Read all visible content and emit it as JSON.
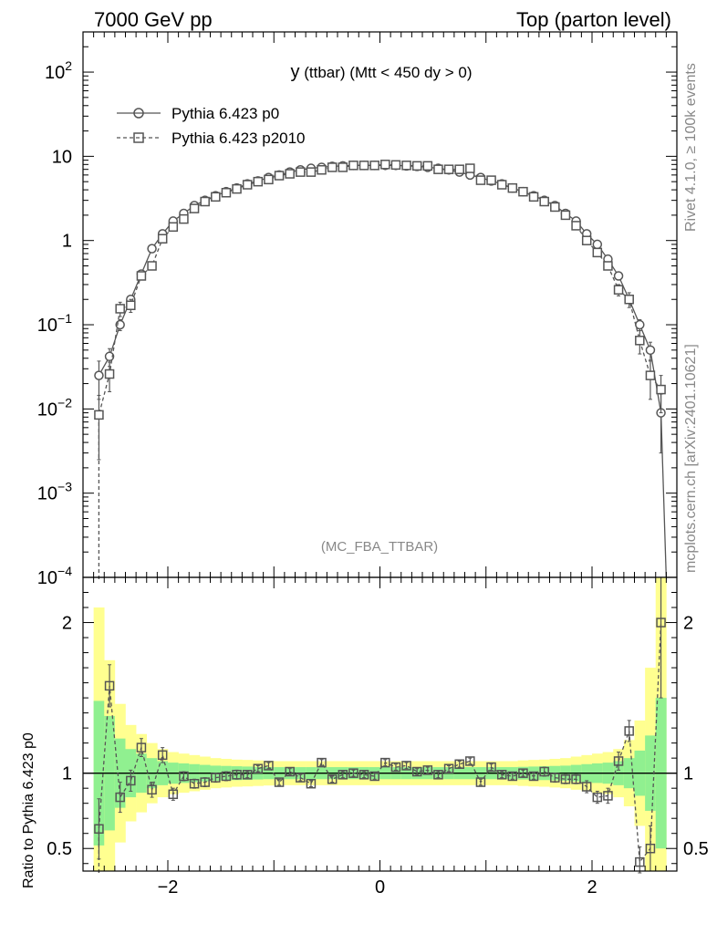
{
  "header": {
    "left": "7000 GeV pp",
    "right": "Top (parton level)"
  },
  "side_labels": {
    "rivet": "Rivet 4.1.0, ≥ 100k events",
    "mcplots": "mcplots.cern.ch [arXiv:2401.10621]"
  },
  "colors": {
    "series1": "#555555",
    "series2": "#555555",
    "band_inner": "#90f090",
    "band_outer": "#ffff90"
  },
  "chart_data": [
    {
      "type": "line",
      "panel": "main",
      "title": "y (ttbar) (Mtt < 450 dy > 0)",
      "title_main": "y",
      "title_rest": " (ttbar) (Mtt < 450 dy > 0)",
      "watermark": "(MC_FBA_TTBAR)",
      "xlabel": "",
      "ylabel": "",
      "yscale": "log",
      "xlim": [
        -2.8,
        2.8
      ],
      "ylim": [
        0.0001,
        300
      ],
      "ytick_labels": [
        {
          "value": 100,
          "base": "10",
          "exp": "2"
        },
        {
          "value": 10,
          "base": "10",
          "exp": ""
        },
        {
          "value": 1,
          "base": "1",
          "exp": ""
        },
        {
          "value": 0.1,
          "base": "10",
          "exp": "−1"
        },
        {
          "value": 0.01,
          "base": "10",
          "exp": "−2"
        },
        {
          "value": 0.001,
          "base": "10",
          "exp": "−3"
        },
        {
          "value": 0.0001,
          "base": "10",
          "exp": "−4"
        }
      ],
      "legend_position": "top-left",
      "series": [
        {
          "name": "Pythia 6.423 p0",
          "style": "solid-circle",
          "x": [
            -2.65,
            -2.55,
            -2.45,
            -2.35,
            -2.25,
            -2.15,
            -2.05,
            -1.95,
            -1.85,
            -1.75,
            -1.65,
            -1.55,
            -1.45,
            -1.35,
            -1.25,
            -1.15,
            -1.05,
            -0.95,
            -0.85,
            -0.75,
            -0.65,
            -0.55,
            -0.45,
            -0.35,
            -0.25,
            -0.15,
            -0.05,
            0.05,
            0.15,
            0.25,
            0.35,
            0.45,
            0.55,
            0.65,
            0.75,
            0.85,
            0.95,
            1.05,
            1.15,
            1.25,
            1.35,
            1.45,
            1.55,
            1.65,
            1.75,
            1.85,
            1.95,
            2.05,
            2.15,
            2.25,
            2.35,
            2.45,
            2.55,
            2.65
          ],
          "values": [
            0.025,
            0.042,
            0.1,
            0.2,
            0.4,
            0.8,
            1.2,
            1.7,
            2.1,
            2.6,
            3.0,
            3.4,
            3.8,
            4.2,
            4.7,
            5.1,
            5.6,
            6.0,
            6.5,
            6.9,
            7.2,
            7.4,
            7.6,
            7.7,
            7.8,
            7.8,
            7.8,
            7.8,
            7.8,
            7.7,
            7.6,
            7.4,
            7.2,
            6.9,
            6.5,
            6.0,
            5.6,
            5.1,
            4.7,
            4.2,
            3.8,
            3.4,
            3.0,
            2.6,
            2.1,
            1.7,
            1.2,
            0.9,
            0.6,
            0.38,
            0.2,
            0.1,
            0.05,
            0.009
          ],
          "errors": [
            0.012,
            0.01,
            0.015,
            0.02,
            0.03,
            0.05,
            0.06,
            0.07,
            0.08,
            0.08,
            0.09,
            0.1,
            0.1,
            0.1,
            0.1,
            0.1,
            0.1,
            0.1,
            0.1,
            0.1,
            0.1,
            0.1,
            0.1,
            0.1,
            0.1,
            0.1,
            0.1,
            0.1,
            0.1,
            0.1,
            0.1,
            0.1,
            0.1,
            0.1,
            0.1,
            0.1,
            0.1,
            0.1,
            0.1,
            0.1,
            0.1,
            0.1,
            0.09,
            0.08,
            0.08,
            0.07,
            0.06,
            0.05,
            0.04,
            0.03,
            0.02,
            0.015,
            0.012,
            0.006
          ]
        },
        {
          "name": "Pythia 6.423 p2010",
          "style": "dashed-square",
          "x": [
            -2.65,
            -2.55,
            -2.45,
            -2.35,
            -2.25,
            -2.15,
            -2.05,
            -1.95,
            -1.85,
            -1.75,
            -1.65,
            -1.55,
            -1.45,
            -1.35,
            -1.25,
            -1.15,
            -1.05,
            -0.95,
            -0.85,
            -0.75,
            -0.65,
            -0.55,
            -0.45,
            -0.35,
            -0.25,
            -0.15,
            -0.05,
            0.05,
            0.15,
            0.25,
            0.35,
            0.45,
            0.55,
            0.65,
            0.75,
            0.85,
            0.95,
            1.05,
            1.15,
            1.25,
            1.35,
            1.45,
            1.55,
            1.65,
            1.75,
            1.85,
            1.95,
            2.05,
            2.15,
            2.25,
            2.35,
            2.45,
            2.55,
            2.65
          ],
          "values": [
            0.0085,
            0.026,
            0.155,
            0.17,
            0.38,
            0.5,
            1.05,
            1.45,
            1.8,
            2.4,
            2.9,
            3.3,
            3.7,
            4.1,
            4.6,
            5.0,
            5.3,
            5.9,
            6.2,
            6.5,
            6.5,
            6.9,
            7.4,
            7.4,
            7.8,
            7.8,
            7.8,
            8.0,
            7.9,
            7.8,
            7.7,
            7.7,
            7.0,
            7.0,
            7.0,
            7.2,
            5.2,
            5.2,
            4.6,
            4.2,
            3.8,
            3.3,
            2.9,
            2.5,
            2.0,
            1.5,
            1.0,
            0.72,
            0.5,
            0.26,
            0.2,
            0.065,
            0.025,
            0.017
          ],
          "errors": [
            0.006,
            0.01,
            0.03,
            0.03,
            0.04,
            0.05,
            0.07,
            0.08,
            0.09,
            0.1,
            0.1,
            0.11,
            0.11,
            0.12,
            0.12,
            0.12,
            0.12,
            0.12,
            0.12,
            0.12,
            0.12,
            0.12,
            0.12,
            0.12,
            0.12,
            0.12,
            0.12,
            0.12,
            0.12,
            0.12,
            0.12,
            0.12,
            0.12,
            0.12,
            0.12,
            0.12,
            0.12,
            0.12,
            0.12,
            0.12,
            0.11,
            0.11,
            0.1,
            0.1,
            0.09,
            0.08,
            0.07,
            0.06,
            0.05,
            0.04,
            0.04,
            0.02,
            0.012,
            0.008
          ]
        }
      ]
    },
    {
      "type": "line",
      "panel": "ratio",
      "ylabel": "Ratio to Pythia 6.423 p0",
      "xlabel": "",
      "xlim": [
        -2.8,
        2.8
      ],
      "ylim": [
        0.35,
        2.3
      ],
      "xticks": [
        -2,
        0,
        2
      ],
      "xtick_labels": [
        "−2",
        "0",
        "2"
      ],
      "yticks": [
        0.5,
        1,
        2
      ],
      "ytick_labels": [
        "0.5",
        "1",
        "2"
      ],
      "band_x_edges": [
        -2.7,
        -2.6,
        -2.5,
        -2.4,
        -2.3,
        -2.2,
        -2.1,
        -2.0,
        -1.9,
        -1.8,
        -1.7,
        -1.6,
        -1.5,
        -1.4,
        -1.3,
        -1.2,
        -1.1,
        -1.0,
        -0.9,
        -0.8,
        -0.7,
        -0.6,
        -0.5,
        -0.4,
        -0.3,
        -0.2,
        -0.1,
        0.0,
        0.1,
        0.2,
        0.3,
        0.4,
        0.5,
        0.6,
        0.7,
        0.8,
        0.9,
        1.0,
        1.1,
        1.2,
        1.3,
        1.4,
        1.5,
        1.6,
        1.7,
        1.8,
        1.9,
        2.0,
        2.1,
        2.2,
        2.3,
        2.4,
        2.5,
        2.6,
        2.7
      ],
      "band_inner": [
        0.48,
        0.38,
        0.23,
        0.16,
        0.13,
        0.1,
        0.08,
        0.07,
        0.065,
        0.06,
        0.055,
        0.05,
        0.048,
        0.046,
        0.044,
        0.042,
        0.04,
        0.04,
        0.04,
        0.04,
        0.04,
        0.04,
        0.04,
        0.04,
        0.04,
        0.04,
        0.04,
        0.04,
        0.04,
        0.04,
        0.04,
        0.04,
        0.04,
        0.04,
        0.04,
        0.04,
        0.04,
        0.04,
        0.04,
        0.04,
        0.042,
        0.044,
        0.046,
        0.048,
        0.05,
        0.055,
        0.06,
        0.065,
        0.07,
        0.08,
        0.1,
        0.15,
        0.25,
        0.5
      ],
      "band_outer": [
        1.1,
        0.75,
        0.46,
        0.32,
        0.26,
        0.2,
        0.16,
        0.14,
        0.13,
        0.12,
        0.11,
        0.1,
        0.095,
        0.09,
        0.088,
        0.085,
        0.082,
        0.08,
        0.08,
        0.08,
        0.08,
        0.08,
        0.08,
        0.08,
        0.08,
        0.08,
        0.08,
        0.08,
        0.08,
        0.08,
        0.08,
        0.08,
        0.08,
        0.08,
        0.08,
        0.08,
        0.08,
        0.08,
        0.08,
        0.08,
        0.085,
        0.088,
        0.09,
        0.095,
        0.1,
        0.11,
        0.12,
        0.13,
        0.14,
        0.16,
        0.22,
        0.35,
        0.7,
        1.5
      ],
      "series": [
        {
          "name": "Pythia 6.423 p2010 / Pythia 6.423 p0",
          "style": "dashed-square",
          "x": [
            -2.65,
            -2.55,
            -2.45,
            -2.35,
            -2.25,
            -2.15,
            -2.05,
            -1.95,
            -1.85,
            -1.75,
            -1.65,
            -1.55,
            -1.45,
            -1.35,
            -1.25,
            -1.15,
            -1.05,
            -0.95,
            -0.85,
            -0.75,
            -0.65,
            -0.55,
            -0.45,
            -0.35,
            -0.25,
            -0.15,
            -0.05,
            0.05,
            0.15,
            0.25,
            0.35,
            0.45,
            0.55,
            0.65,
            0.75,
            0.85,
            0.95,
            1.05,
            1.15,
            1.25,
            1.35,
            1.45,
            1.55,
            1.65,
            1.75,
            1.85,
            1.95,
            2.05,
            2.15,
            2.25,
            2.35,
            2.45,
            2.55,
            2.65
          ],
          "values": [
            0.63,
            1.58,
            0.84,
            0.95,
            1.17,
            0.89,
            1.12,
            0.86,
            0.98,
            0.93,
            0.94,
            0.97,
            0.98,
            0.99,
            0.99,
            1.03,
            1.05,
            0.94,
            1.01,
            0.97,
            0.93,
            1.07,
            0.96,
            0.99,
            1.0,
            0.99,
            0.98,
            1.07,
            1.04,
            1.05,
            1.01,
            1.02,
            0.99,
            1.03,
            1.06,
            1.08,
            0.94,
            1.04,
            0.99,
            0.98,
            1.0,
            0.98,
            1.01,
            0.97,
            0.96,
            0.96,
            0.91,
            0.84,
            0.85,
            1.08,
            1.28,
            0.41,
            0.5,
            2.0
          ],
          "errors": [
            0.2,
            0.14,
            0.1,
            0.07,
            0.06,
            0.05,
            0.05,
            0.04,
            0.03,
            0.03,
            0.03,
            0.03,
            0.03,
            0.03,
            0.02,
            0.02,
            0.02,
            0.02,
            0.02,
            0.02,
            0.02,
            0.02,
            0.02,
            0.02,
            0.02,
            0.02,
            0.02,
            0.02,
            0.02,
            0.02,
            0.02,
            0.02,
            0.02,
            0.02,
            0.02,
            0.02,
            0.02,
            0.02,
            0.02,
            0.02,
            0.02,
            0.02,
            0.03,
            0.03,
            0.03,
            0.03,
            0.04,
            0.04,
            0.05,
            0.06,
            0.07,
            0.1,
            0.15,
            0.5
          ]
        }
      ]
    }
  ]
}
